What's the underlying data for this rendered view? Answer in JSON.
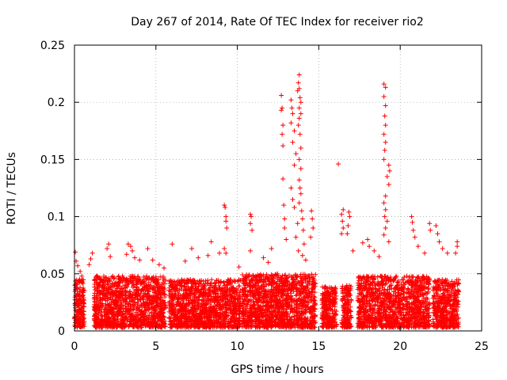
{
  "chart_data": {
    "type": "scatter",
    "title": "Day 267 of 2014, Rate Of TEC Index for receiver rio2",
    "xlabel": "GPS time / hours",
    "ylabel": "ROTI / TECUs",
    "xlim": [
      0,
      25
    ],
    "ylim": [
      0,
      0.25
    ],
    "grid": true,
    "xticks": [
      0,
      5,
      10,
      15,
      20,
      25
    ],
    "xtick_labels": [
      "0",
      "5",
      "10",
      "15",
      "20",
      "25"
    ],
    "yticks": [
      0,
      0.05,
      0.1,
      0.15,
      0.2,
      0.25
    ],
    "ytick_labels": [
      "0",
      "0.05",
      "0.1",
      "0.15",
      "0.2",
      "0.25"
    ],
    "marker": "+",
    "color": "#ff0000",
    "segments": [
      {
        "x0": 0.0,
        "x1": 0.6,
        "ymin": 0.003,
        "ymax": 0.045,
        "count": 180
      },
      {
        "x0": 1.2,
        "x1": 5.6,
        "ymin": 0.003,
        "ymax": 0.048,
        "count": 1200
      },
      {
        "x0": 5.8,
        "x1": 10.2,
        "ymin": 0.003,
        "ymax": 0.045,
        "count": 1200
      },
      {
        "x0": 10.3,
        "x1": 14.8,
        "ymin": 0.003,
        "ymax": 0.05,
        "count": 1300
      },
      {
        "x0": 15.2,
        "x1": 16.1,
        "ymin": 0.003,
        "ymax": 0.04,
        "count": 240
      },
      {
        "x0": 16.4,
        "x1": 17.0,
        "ymin": 0.003,
        "ymax": 0.04,
        "count": 160
      },
      {
        "x0": 17.4,
        "x1": 21.8,
        "ymin": 0.003,
        "ymax": 0.048,
        "count": 1200
      },
      {
        "x0": 22.0,
        "x1": 23.6,
        "ymin": 0.003,
        "ymax": 0.045,
        "count": 450
      }
    ],
    "peaks": [
      {
        "x": 0.05,
        "y": 0.069
      },
      {
        "x": 0.1,
        "y": 0.061
      },
      {
        "x": 0.2,
        "y": 0.057
      },
      {
        "x": 0.35,
        "y": 0.052
      },
      {
        "x": 0.45,
        "y": 0.048
      },
      {
        "x": 1.1,
        "y": 0.068
      },
      {
        "x": 1.0,
        "y": 0.063
      },
      {
        "x": 0.9,
        "y": 0.058
      },
      {
        "x": 2.1,
        "y": 0.076
      },
      {
        "x": 2.0,
        "y": 0.072
      },
      {
        "x": 2.2,
        "y": 0.065
      },
      {
        "x": 3.3,
        "y": 0.076
      },
      {
        "x": 3.45,
        "y": 0.074
      },
      {
        "x": 3.55,
        "y": 0.07
      },
      {
        "x": 3.2,
        "y": 0.067
      },
      {
        "x": 3.7,
        "y": 0.064
      },
      {
        "x": 4.0,
        "y": 0.062
      },
      {
        "x": 4.5,
        "y": 0.072
      },
      {
        "x": 4.8,
        "y": 0.062
      },
      {
        "x": 5.2,
        "y": 0.058
      },
      {
        "x": 5.5,
        "y": 0.055
      },
      {
        "x": 6.0,
        "y": 0.076
      },
      {
        "x": 6.8,
        "y": 0.061
      },
      {
        "x": 7.2,
        "y": 0.072
      },
      {
        "x": 7.6,
        "y": 0.064
      },
      {
        "x": 8.2,
        "y": 0.066
      },
      {
        "x": 8.4,
        "y": 0.078
      },
      {
        "x": 8.9,
        "y": 0.068
      },
      {
        "x": 9.2,
        "y": 0.11
      },
      {
        "x": 9.25,
        "y": 0.108
      },
      {
        "x": 9.3,
        "y": 0.1
      },
      {
        "x": 9.3,
        "y": 0.096
      },
      {
        "x": 9.35,
        "y": 0.09
      },
      {
        "x": 9.2,
        "y": 0.072
      },
      {
        "x": 9.3,
        "y": 0.068
      },
      {
        "x": 10.1,
        "y": 0.056
      },
      {
        "x": 10.8,
        "y": 0.102
      },
      {
        "x": 10.85,
        "y": 0.1
      },
      {
        "x": 10.8,
        "y": 0.094
      },
      {
        "x": 10.9,
        "y": 0.088
      },
      {
        "x": 10.8,
        "y": 0.07
      },
      {
        "x": 11.6,
        "y": 0.064
      },
      {
        "x": 11.9,
        "y": 0.06
      },
      {
        "x": 12.1,
        "y": 0.072
      },
      {
        "x": 12.7,
        "y": 0.206
      },
      {
        "x": 12.75,
        "y": 0.195
      },
      {
        "x": 12.7,
        "y": 0.193
      },
      {
        "x": 12.8,
        "y": 0.18
      },
      {
        "x": 12.75,
        "y": 0.172
      },
      {
        "x": 12.8,
        "y": 0.162
      },
      {
        "x": 12.8,
        "y": 0.133
      },
      {
        "x": 12.85,
        "y": 0.11
      },
      {
        "x": 12.9,
        "y": 0.098
      },
      {
        "x": 12.9,
        "y": 0.09
      },
      {
        "x": 13.0,
        "y": 0.08
      },
      {
        "x": 13.3,
        "y": 0.202
      },
      {
        "x": 13.35,
        "y": 0.195
      },
      {
        "x": 13.4,
        "y": 0.19
      },
      {
        "x": 13.3,
        "y": 0.182
      },
      {
        "x": 13.5,
        "y": 0.175
      },
      {
        "x": 13.4,
        "y": 0.165
      },
      {
        "x": 13.6,
        "y": 0.155
      },
      {
        "x": 13.5,
        "y": 0.145
      },
      {
        "x": 13.3,
        "y": 0.125
      },
      {
        "x": 13.4,
        "y": 0.115
      },
      {
        "x": 13.5,
        "y": 0.108
      },
      {
        "x": 13.8,
        "y": 0.224
      },
      {
        "x": 13.75,
        "y": 0.217
      },
      {
        "x": 13.8,
        "y": 0.212
      },
      {
        "x": 13.7,
        "y": 0.21
      },
      {
        "x": 13.85,
        "y": 0.204
      },
      {
        "x": 13.9,
        "y": 0.2
      },
      {
        "x": 13.8,
        "y": 0.195
      },
      {
        "x": 13.9,
        "y": 0.19
      },
      {
        "x": 13.8,
        "y": 0.186
      },
      {
        "x": 13.75,
        "y": 0.18
      },
      {
        "x": 13.85,
        "y": 0.172
      },
      {
        "x": 13.9,
        "y": 0.16
      },
      {
        "x": 13.8,
        "y": 0.15
      },
      {
        "x": 13.9,
        "y": 0.142
      },
      {
        "x": 13.8,
        "y": 0.132
      },
      {
        "x": 13.85,
        "y": 0.125
      },
      {
        "x": 13.9,
        "y": 0.12
      },
      {
        "x": 13.8,
        "y": 0.112
      },
      {
        "x": 13.95,
        "y": 0.105
      },
      {
        "x": 14.0,
        "y": 0.098
      },
      {
        "x": 13.7,
        "y": 0.094
      },
      {
        "x": 14.05,
        "y": 0.088
      },
      {
        "x": 13.6,
        "y": 0.082
      },
      {
        "x": 14.1,
        "y": 0.076
      },
      {
        "x": 13.75,
        "y": 0.07
      },
      {
        "x": 14.0,
        "y": 0.066
      },
      {
        "x": 14.2,
        "y": 0.062
      },
      {
        "x": 14.55,
        "y": 0.105
      },
      {
        "x": 14.6,
        "y": 0.098
      },
      {
        "x": 14.65,
        "y": 0.09
      },
      {
        "x": 14.5,
        "y": 0.082
      },
      {
        "x": 16.2,
        "y": 0.146
      },
      {
        "x": 16.5,
        "y": 0.106
      },
      {
        "x": 16.4,
        "y": 0.102
      },
      {
        "x": 16.45,
        "y": 0.096
      },
      {
        "x": 16.5,
        "y": 0.09
      },
      {
        "x": 16.4,
        "y": 0.085
      },
      {
        "x": 16.85,
        "y": 0.104
      },
      {
        "x": 16.9,
        "y": 0.1
      },
      {
        "x": 16.8,
        "y": 0.092
      },
      {
        "x": 16.75,
        "y": 0.085
      },
      {
        "x": 17.1,
        "y": 0.07
      },
      {
        "x": 17.7,
        "y": 0.077
      },
      {
        "x": 18.0,
        "y": 0.08
      },
      {
        "x": 18.1,
        "y": 0.074
      },
      {
        "x": 18.4,
        "y": 0.07
      },
      {
        "x": 18.7,
        "y": 0.065
      },
      {
        "x": 19.0,
        "y": 0.216
      },
      {
        "x": 19.1,
        "y": 0.213
      },
      {
        "x": 19.0,
        "y": 0.205
      },
      {
        "x": 19.1,
        "y": 0.197
      },
      {
        "x": 19.05,
        "y": 0.188
      },
      {
        "x": 19.1,
        "y": 0.18
      },
      {
        "x": 19.0,
        "y": 0.172
      },
      {
        "x": 19.1,
        "y": 0.165
      },
      {
        "x": 19.05,
        "y": 0.158
      },
      {
        "x": 19.0,
        "y": 0.15
      },
      {
        "x": 19.3,
        "y": 0.145
      },
      {
        "x": 19.35,
        "y": 0.14
      },
      {
        "x": 19.2,
        "y": 0.135
      },
      {
        "x": 19.3,
        "y": 0.128
      },
      {
        "x": 19.1,
        "y": 0.118
      },
      {
        "x": 19.0,
        "y": 0.112
      },
      {
        "x": 19.1,
        "y": 0.106
      },
      {
        "x": 19.05,
        "y": 0.1
      },
      {
        "x": 19.2,
        "y": 0.096
      },
      {
        "x": 19.1,
        "y": 0.09
      },
      {
        "x": 19.0,
        "y": 0.084
      },
      {
        "x": 19.3,
        "y": 0.078
      },
      {
        "x": 20.7,
        "y": 0.1
      },
      {
        "x": 20.75,
        "y": 0.095
      },
      {
        "x": 20.8,
        "y": 0.088
      },
      {
        "x": 20.9,
        "y": 0.082
      },
      {
        "x": 21.1,
        "y": 0.074
      },
      {
        "x": 21.5,
        "y": 0.068
      },
      {
        "x": 21.8,
        "y": 0.094
      },
      {
        "x": 21.85,
        "y": 0.088
      },
      {
        "x": 22.2,
        "y": 0.092
      },
      {
        "x": 22.3,
        "y": 0.085
      },
      {
        "x": 22.4,
        "y": 0.078
      },
      {
        "x": 22.6,
        "y": 0.072
      },
      {
        "x": 22.9,
        "y": 0.068
      },
      {
        "x": 23.4,
        "y": 0.068
      },
      {
        "x": 23.5,
        "y": 0.078
      },
      {
        "x": 23.5,
        "y": 0.074
      }
    ]
  }
}
